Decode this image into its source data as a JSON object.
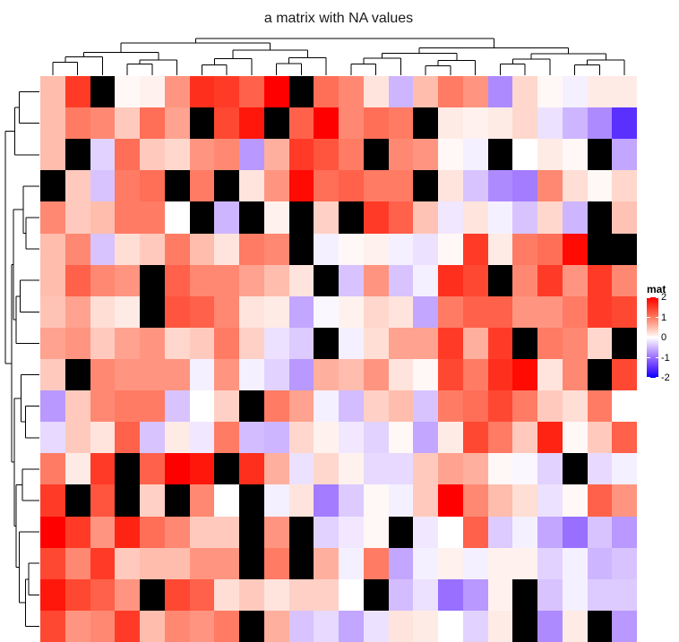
{
  "title": "a matrix with NA values",
  "legend": {
    "title": "mat",
    "ticks": [
      "2",
      "1",
      "0",
      "-1",
      "-2"
    ],
    "tick_values": [
      2,
      1,
      0,
      -1,
      -2
    ],
    "max_color": "#FF0000",
    "mid_color": "#FFFFFF",
    "min_color": "#0000FF",
    "na_color": "#000000"
  },
  "chart_data": {
    "type": "heatmap",
    "title": "a matrix with NA values",
    "n_rows": 18,
    "n_cols": 24,
    "value_domain": [
      -2,
      2
    ],
    "na_label": "NA",
    "na_color": "#000000",
    "legend_position": "right",
    "values": [
      [
        0.5,
        1.5,
        null,
        0.05,
        0.1,
        0.8,
        1.6,
        1.5,
        1.2,
        2,
        null,
        1.1,
        0.9,
        0.2,
        -0.5,
        0.5,
        1.0,
        0.8,
        -0.8,
        0.3,
        0.05,
        -0.1,
        0.15,
        0.15
      ],
      [
        0.5,
        1.0,
        0.9,
        0.4,
        1.1,
        0.7,
        null,
        1.4,
        1.8,
        null,
        1.2,
        2,
        0.9,
        1.1,
        1.0,
        null,
        0.15,
        0.1,
        0.15,
        0.3,
        -0.2,
        -0.5,
        -0.8,
        -1.5
      ],
      [
        0.5,
        null,
        -0.3,
        1.1,
        0.4,
        0.3,
        0.8,
        0.9,
        -0.7,
        0.6,
        1.5,
        1.3,
        1.0,
        null,
        0.9,
        0.8,
        0.05,
        -0.1,
        null,
        0,
        0.15,
        0.05,
        null,
        -0.6
      ],
      [
        null,
        0.4,
        -0.4,
        1.0,
        1.1,
        null,
        1.0,
        null,
        0.2,
        0.8,
        1.9,
        1.1,
        1.2,
        1.0,
        1.0,
        null,
        0.2,
        -0.4,
        -0.8,
        -0.9,
        0.9,
        0.25,
        0.05,
        0.3
      ],
      [
        0.9,
        0.4,
        0.5,
        1.0,
        1.0,
        0,
        null,
        -0.5,
        null,
        0.1,
        null,
        0.35,
        null,
        1.5,
        1.2,
        0.45,
        -0.15,
        0.2,
        -0.1,
        -0.4,
        0.3,
        -0.5,
        null,
        0.45
      ],
      [
        0.5,
        0.9,
        -0.4,
        0.25,
        0.4,
        1.0,
        0.5,
        0.2,
        1.0,
        0.9,
        null,
        -0.1,
        0.05,
        0.1,
        -0.1,
        -0.2,
        0.05,
        1.5,
        0.15,
        1.0,
        1.1,
        1.9,
        null,
        null
      ],
      [
        0.5,
        1.2,
        0.9,
        0.8,
        null,
        1.2,
        0.9,
        0.9,
        0.7,
        0.5,
        0.2,
        null,
        -0.4,
        0.8,
        -0.4,
        -0.1,
        1.6,
        1.4,
        null,
        0.9,
        1.5,
        0.8,
        1.5,
        0.9
      ],
      [
        0.45,
        0.7,
        0.25,
        0.15,
        null,
        1.3,
        1.2,
        0.9,
        0.2,
        0.15,
        -0.6,
        -0.05,
        0.1,
        0.3,
        0.2,
        -0.6,
        1.0,
        1.2,
        1.2,
        0.8,
        0.8,
        1.0,
        1.5,
        1.4
      ],
      [
        0.7,
        0.8,
        0.4,
        0.7,
        0.8,
        0.3,
        0.4,
        1.0,
        0.35,
        -0.2,
        -0.35,
        null,
        -0.1,
        0.25,
        0.7,
        0.7,
        1.5,
        0.6,
        1.5,
        null,
        1.0,
        0.9,
        0.3,
        null
      ],
      [
        0.4,
        null,
        0.9,
        0.8,
        0.8,
        0.8,
        -0.1,
        0.8,
        -0.1,
        -0.3,
        -0.7,
        0.6,
        0.5,
        0.8,
        0.2,
        0.05,
        1.4,
        1.0,
        1.6,
        1.9,
        0.2,
        0.9,
        null,
        1.4
      ],
      [
        -0.7,
        0.4,
        0.9,
        1.0,
        1.0,
        -0.4,
        0,
        0.35,
        null,
        1.0,
        0.7,
        -0.1,
        -0.45,
        0.35,
        0.5,
        -0.4,
        1.0,
        1.1,
        1.4,
        1.0,
        0.4,
        0.25,
        1.0,
        0
      ],
      [
        -0.25,
        0.4,
        0.2,
        1.2,
        -0.4,
        0.15,
        -0.15,
        1.0,
        -0.45,
        -0.5,
        0.3,
        0.1,
        -0.15,
        -0.3,
        0.05,
        -0.6,
        0.15,
        1.4,
        1.0,
        0.4,
        1.7,
        0.05,
        0.4,
        1.2
      ],
      [
        1.0,
        0.15,
        1.5,
        null,
        1.2,
        2,
        1.8,
        null,
        1.6,
        0.6,
        -0.2,
        0.3,
        0.1,
        -0.25,
        -0.25,
        0.4,
        0.7,
        0.6,
        0.05,
        -0.05,
        -0.3,
        null,
        -0.25,
        -0.1
      ],
      [
        1.5,
        null,
        1.3,
        null,
        0.35,
        null,
        0.9,
        0,
        null,
        -0.1,
        0.2,
        -0.9,
        -0.35,
        0.05,
        -0.1,
        0.4,
        2,
        0.9,
        0.5,
        0.25,
        -0.2,
        0.05,
        1.2,
        0.8
      ],
      [
        2,
        1.5,
        0.8,
        1.7,
        1.1,
        0.9,
        0.4,
        0.4,
        null,
        0.8,
        null,
        -0.3,
        -0.15,
        0.05,
        null,
        -0.15,
        0,
        1.2,
        -0.35,
        -0.1,
        -0.6,
        -1.0,
        -0.4,
        -0.7
      ],
      [
        1.4,
        0.9,
        1.5,
        0.4,
        0.5,
        0.5,
        0.8,
        0.8,
        null,
        1.0,
        null,
        0.6,
        -0.1,
        1.0,
        -0.6,
        -0.1,
        0.1,
        -0.1,
        0.1,
        0.1,
        -0.3,
        -0.1,
        -0.5,
        -0.4
      ],
      [
        1.8,
        1.4,
        1.2,
        0.8,
        null,
        1.4,
        1.2,
        0.25,
        0.4,
        0.2,
        0.35,
        0.35,
        0,
        null,
        -0.45,
        -0.2,
        -1.0,
        -0.7,
        0.1,
        null,
        -0.4,
        -0.1,
        -0.35,
        -0.35
      ],
      [
        1.4,
        0.8,
        0.9,
        1.5,
        0.5,
        0.9,
        0.8,
        1.0,
        null,
        0.6,
        -0.4,
        -0.25,
        -0.6,
        -0.2,
        0.2,
        0.15,
        0,
        -0.3,
        0.15,
        null,
        -0.8,
        0.15,
        null,
        -0.7
      ]
    ],
    "col_dendrogram": {
      "merges": [
        [
          -1,
          -2,
          0.35
        ],
        [
          1,
          -3,
          0.5
        ],
        [
          -4,
          -5,
          0.3
        ],
        [
          3,
          -6,
          0.42
        ],
        [
          2,
          4,
          0.62
        ],
        [
          -7,
          -8,
          0.28
        ],
        [
          6,
          -9,
          0.45
        ],
        [
          -10,
          -11,
          0.32
        ],
        [
          8,
          -12,
          0.48
        ],
        [
          7,
          9,
          0.68
        ],
        [
          5,
          10,
          0.88
        ],
        [
          -13,
          -14,
          0.3
        ],
        [
          12,
          -15,
          0.46
        ],
        [
          -16,
          -17,
          0.26
        ],
        [
          14,
          -18,
          0.4
        ],
        [
          13,
          15,
          0.6
        ],
        [
          -19,
          -20,
          0.3
        ],
        [
          17,
          -21,
          0.44
        ],
        [
          -22,
          -23,
          0.28
        ],
        [
          19,
          -24,
          0.42
        ],
        [
          18,
          20,
          0.58
        ],
        [
          16,
          21,
          0.75
        ],
        [
          11,
          22,
          1.0
        ]
      ]
    },
    "row_dendrogram": {
      "merges": [
        [
          -1,
          -2,
          0.59
        ],
        [
          1,
          -3,
          0.72
        ],
        [
          -5,
          -6,
          0.39
        ],
        [
          -4,
          3,
          0.47
        ],
        [
          -7,
          -8,
          0.56
        ],
        [
          5,
          -9,
          0.68
        ],
        [
          4,
          6,
          0.76
        ],
        [
          -11,
          -12,
          0.41
        ],
        [
          -10,
          8,
          0.54
        ],
        [
          -13,
          -14,
          0.5
        ],
        [
          -16,
          -17,
          0.32
        ],
        [
          11,
          -18,
          0.41
        ],
        [
          -15,
          12,
          0.59
        ],
        [
          10,
          13,
          0.68
        ],
        [
          9,
          14,
          0.74
        ],
        [
          7,
          15,
          0.82
        ],
        [
          2,
          16,
          1.0
        ]
      ]
    }
  }
}
